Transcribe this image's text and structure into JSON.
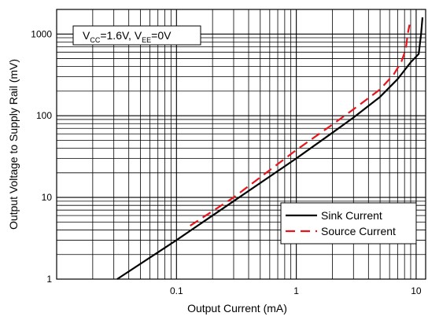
{
  "chart_data": {
    "type": "line",
    "title": "",
    "xlabel": "Output Current (mA)",
    "ylabel": "Output Voltage to Supply Rail (mV)",
    "x_scale": "log",
    "y_scale": "log",
    "xlim": [
      0.01,
      12
    ],
    "ylim": [
      1,
      2000
    ],
    "x_tick_labels": [
      "0.1",
      "1",
      "10"
    ],
    "x_tick_values": [
      0.1,
      1,
      10
    ],
    "y_tick_labels": [
      "1",
      "10",
      "100",
      "1000"
    ],
    "y_tick_values": [
      1,
      10,
      100,
      1000
    ],
    "grid": true,
    "legend_position": "bottom-right",
    "condition_box": {
      "v1": "V",
      "v1_sub": "CC",
      "v1_value": "=1.6V, V",
      "v2_sub": "EE",
      "v2_value": "=0V"
    },
    "series": [
      {
        "name": "Sink Current",
        "color": "#000000",
        "style": "solid",
        "x": [
          0.032,
          0.1,
          0.3,
          1,
          2,
          3,
          5,
          7,
          9,
          10.5,
          11,
          11.3
        ],
        "y": [
          1,
          3,
          9,
          30,
          62,
          95,
          170,
          280,
          450,
          570,
          1000,
          1600
        ]
      },
      {
        "name": "Source Current",
        "color": "#e8141c",
        "style": "dashed",
        "x": [
          0.13,
          0.3,
          1,
          2,
          3,
          5,
          6.5,
          7.5,
          8.2,
          8.5,
          8.8
        ],
        "y": [
          4.5,
          10,
          38,
          78,
          120,
          210,
          320,
          450,
          650,
          1000,
          1300
        ]
      }
    ]
  }
}
